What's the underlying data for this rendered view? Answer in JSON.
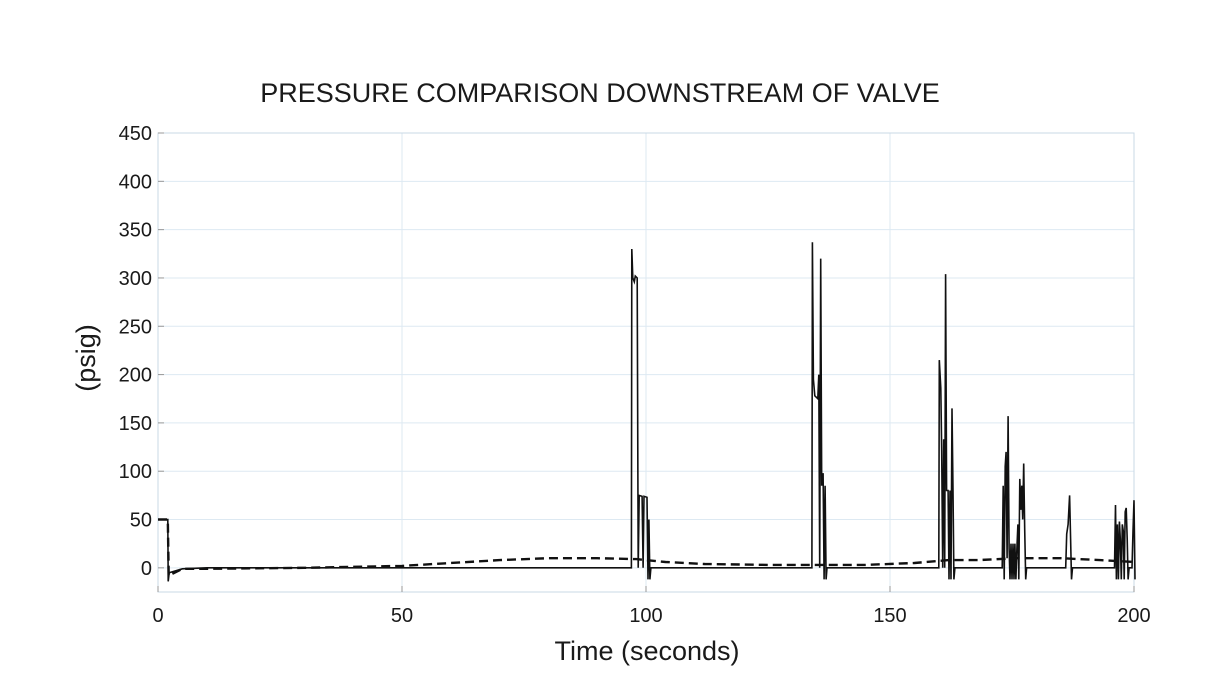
{
  "chart_data": {
    "type": "line",
    "title": "PRESSURE COMPARISON DOWNSTREAM OF VALVE",
    "xlabel": "Time (seconds)",
    "ylabel": "(psig)",
    "xlim": [
      0,
      200
    ],
    "ylim": [
      -25,
      450
    ],
    "x_ticks": [
      "0",
      "50",
      "100",
      "150",
      "200"
    ],
    "y_ticks": [
      "450",
      "400",
      "350",
      "300",
      "250",
      "200",
      "150",
      "100",
      "50",
      "0"
    ],
    "grid": true,
    "legend": "none",
    "colors": {
      "solid": "#111111",
      "dashed": "#111111",
      "grid": "#dde9f2",
      "frame": "#c8d8e6"
    },
    "series": [
      {
        "style": "solid",
        "points": [
          [
            0,
            50
          ],
          [
            2,
            50
          ],
          [
            2.1,
            -14
          ],
          [
            2.3,
            -5
          ],
          [
            5,
            -1
          ],
          [
            10,
            0
          ],
          [
            50,
            0
          ],
          [
            97,
            0
          ],
          [
            97.1,
            330
          ],
          [
            97.3,
            300
          ],
          [
            97.6,
            296
          ],
          [
            97.8,
            302
          ],
          [
            98.2,
            300
          ],
          [
            98.4,
            0
          ],
          [
            98.6,
            75
          ],
          [
            99.2,
            74
          ],
          [
            99.4,
            0
          ],
          [
            99.6,
            74
          ],
          [
            100.2,
            73
          ],
          [
            100.4,
            -12
          ],
          [
            100.6,
            50
          ],
          [
            100.8,
            -12
          ],
          [
            101,
            0
          ],
          [
            134,
            0
          ],
          [
            134.1,
            337
          ],
          [
            134.3,
            195
          ],
          [
            134.6,
            178
          ],
          [
            135.2,
            175
          ],
          [
            135.4,
            200
          ],
          [
            135.6,
            0
          ],
          [
            135.8,
            320
          ],
          [
            136,
            85
          ],
          [
            136.3,
            98
          ],
          [
            136.5,
            -12
          ],
          [
            136.7,
            85
          ],
          [
            136.9,
            -12
          ],
          [
            137.1,
            0
          ],
          [
            160,
            0
          ],
          [
            160.1,
            215
          ],
          [
            160.4,
            186
          ],
          [
            160.6,
            120
          ],
          [
            160.8,
            0
          ],
          [
            161,
            133
          ],
          [
            161.2,
            0
          ],
          [
            161.4,
            304
          ],
          [
            161.6,
            80
          ],
          [
            161.9,
            80
          ],
          [
            162.1,
            -12
          ],
          [
            162.3,
            80
          ],
          [
            162.5,
            -12
          ],
          [
            162.7,
            165
          ],
          [
            162.9,
            80
          ],
          [
            163.1,
            -12
          ],
          [
            163.3,
            0
          ],
          [
            173,
            0
          ],
          [
            173.2,
            85
          ],
          [
            173.4,
            -12
          ],
          [
            173.6,
            105
          ],
          [
            173.8,
            120
          ],
          [
            174,
            10
          ],
          [
            174.2,
            157
          ],
          [
            174.4,
            20
          ],
          [
            174.6,
            -12
          ],
          [
            174.8,
            25
          ],
          [
            175,
            -12
          ],
          [
            175.2,
            25
          ],
          [
            175.4,
            -12
          ],
          [
            175.6,
            25
          ],
          [
            175.8,
            -12
          ],
          [
            176,
            20
          ],
          [
            176.2,
            45
          ],
          [
            176.4,
            -12
          ],
          [
            176.6,
            92
          ],
          [
            176.8,
            60
          ],
          [
            177,
            85
          ],
          [
            177.2,
            50
          ],
          [
            177.4,
            108
          ],
          [
            177.6,
            40
          ],
          [
            177.8,
            -12
          ],
          [
            178,
            0
          ],
          [
            186,
            0
          ],
          [
            186.2,
            35
          ],
          [
            186.5,
            45
          ],
          [
            186.8,
            75
          ],
          [
            187,
            30
          ],
          [
            187.2,
            -12
          ],
          [
            187.4,
            0
          ],
          [
            196,
            0
          ],
          [
            196.2,
            65
          ],
          [
            196.4,
            -12
          ],
          [
            196.6,
            45
          ],
          [
            196.8,
            -12
          ],
          [
            197,
            48
          ],
          [
            197.2,
            30
          ],
          [
            197.4,
            -12
          ],
          [
            197.6,
            45
          ],
          [
            197.8,
            38
          ],
          [
            198,
            -12
          ],
          [
            198.2,
            58
          ],
          [
            198.4,
            62
          ],
          [
            198.6,
            30
          ],
          [
            198.8,
            -12
          ],
          [
            199,
            0
          ],
          [
            199.6,
            0
          ],
          [
            199.8,
            38
          ],
          [
            200,
            70
          ],
          [
            200.2,
            -12
          ]
        ]
      },
      {
        "style": "dashed",
        "points": [
          [
            0,
            50
          ],
          [
            2,
            50
          ],
          [
            2.2,
            -8
          ],
          [
            5,
            -1
          ],
          [
            10,
            -1
          ],
          [
            30,
            0
          ],
          [
            50,
            2
          ],
          [
            60,
            5
          ],
          [
            70,
            8
          ],
          [
            80,
            10
          ],
          [
            90,
            10
          ],
          [
            98,
            9
          ],
          [
            104,
            6
          ],
          [
            112,
            4
          ],
          [
            125,
            3
          ],
          [
            135,
            3
          ],
          [
            145,
            3
          ],
          [
            155,
            5
          ],
          [
            162,
            8
          ],
          [
            168,
            8
          ],
          [
            176,
            10
          ],
          [
            185,
            10
          ],
          [
            193,
            8
          ],
          [
            200,
            6
          ]
        ]
      }
    ]
  }
}
